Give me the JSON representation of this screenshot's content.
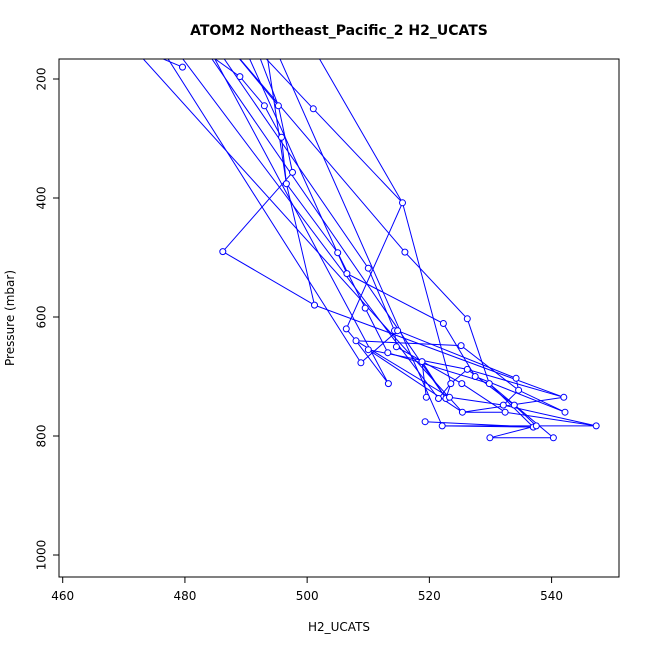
{
  "chart_data": {
    "type": "scatter",
    "title": "ATOM2 Northeast_Pacific_2 H2_UCATS",
    "xlabel": "H2_UCATS",
    "ylabel": "Pressure (mbar)",
    "xlim": [
      460,
      550
    ],
    "ylim": [
      1030,
      165
    ],
    "y_reversed": true,
    "x_ticks": [
      460,
      480,
      500,
      520,
      540
    ],
    "y_ticks": [
      200,
      400,
      600,
      800,
      1000
    ],
    "grid": false,
    "legend": "none",
    "series_color": "#0000ff",
    "points_shown": [
      [
        479.6,
        180
      ],
      [
        489.0,
        196
      ],
      [
        493.0,
        245
      ],
      [
        495.3,
        245
      ],
      [
        501.0,
        250
      ],
      [
        495.8,
        298
      ],
      [
        497.6,
        357
      ],
      [
        496.6,
        376
      ],
      [
        515.6,
        408
      ],
      [
        486.2,
        490
      ],
      [
        505.0,
        492
      ],
      [
        516.0,
        491
      ],
      [
        510.0,
        518
      ],
      [
        506.5,
        527
      ],
      [
        501.2,
        580
      ],
      [
        509.5,
        585
      ],
      [
        526.2,
        603
      ],
      [
        506.4,
        620
      ],
      [
        522.3,
        611
      ],
      [
        514.3,
        623
      ],
      [
        514.8,
        623
      ],
      [
        508.0,
        640
      ],
      [
        510.0,
        655
      ],
      [
        514.6,
        650
      ],
      [
        513.2,
        660
      ],
      [
        525.2,
        648
      ],
      [
        508.8,
        677
      ],
      [
        518.8,
        675
      ],
      [
        526.2,
        688
      ],
      [
        513.3,
        712
      ],
      [
        523.5,
        712
      ],
      [
        525.3,
        712
      ],
      [
        529.8,
        712
      ],
      [
        534.2,
        703
      ],
      [
        527.5,
        700
      ],
      [
        534.6,
        723
      ],
      [
        519.5,
        735
      ],
      [
        521.5,
        737
      ],
      [
        522.7,
        737
      ],
      [
        523.3,
        735
      ],
      [
        532.1,
        748
      ],
      [
        533.9,
        748
      ],
      [
        542.0,
        735
      ],
      [
        525.4,
        760
      ],
      [
        532.4,
        760
      ],
      [
        542.2,
        760
      ],
      [
        519.3,
        776
      ],
      [
        522.1,
        783
      ],
      [
        537.0,
        785
      ],
      [
        537.5,
        783
      ],
      [
        547.3,
        783
      ],
      [
        529.9,
        803
      ],
      [
        540.3,
        803
      ]
    ],
    "profiles": [
      [
        [
          468.0,
          130
        ],
        [
          479.6,
          180
        ]
      ],
      [
        [
          480.0,
          130
        ],
        [
          489.0,
          196
        ],
        [
          493.0,
          245
        ],
        [
          495.8,
          298
        ],
        [
          496.6,
          376
        ],
        [
          501.2,
          580
        ],
        [
          542.0,
          735
        ],
        [
          525.4,
          760
        ],
        [
          532.4,
          760
        ],
        [
          547.3,
          783
        ],
        [
          522.1,
          783
        ]
      ],
      [
        [
          486.0,
          130
        ],
        [
          495.3,
          245
        ],
        [
          497.6,
          357
        ],
        [
          486.2,
          490
        ],
        [
          501.2,
          580
        ]
      ],
      [
        [
          491.0,
          130
        ],
        [
          495.3,
          245
        ]
      ],
      [
        [
          490.0,
          130
        ],
        [
          501.0,
          250
        ],
        [
          515.6,
          408
        ],
        [
          506.4,
          620
        ],
        [
          508.0,
          640
        ],
        [
          525.2,
          648
        ],
        [
          534.6,
          723
        ],
        [
          532.1,
          748
        ]
      ],
      [
        [
          493.0,
          130
        ],
        [
          496.6,
          376
        ],
        [
          505.0,
          492
        ],
        [
          509.5,
          585
        ],
        [
          513.2,
          660
        ],
        [
          529.8,
          712
        ],
        [
          537.0,
          785
        ],
        [
          519.3,
          776
        ]
      ],
      [
        [
          486.0,
          130
        ],
        [
          516.0,
          491
        ],
        [
          526.2,
          603
        ],
        [
          529.8,
          712
        ],
        [
          540.3,
          803
        ]
      ],
      [
        [
          484.0,
          130
        ],
        [
          510.0,
          518
        ],
        [
          514.3,
          623
        ],
        [
          514.6,
          650
        ],
        [
          525.3,
          712
        ],
        [
          532.4,
          760
        ]
      ],
      [
        [
          489.0,
          130
        ],
        [
          506.5,
          527
        ],
        [
          522.3,
          611
        ],
        [
          527.5,
          700
        ],
        [
          542.2,
          760
        ]
      ],
      [
        [
          475.0,
          130
        ],
        [
          508.8,
          677
        ],
        [
          514.8,
          623
        ],
        [
          534.2,
          703
        ],
        [
          534.6,
          723
        ],
        [
          542.2,
          760
        ]
      ],
      [
        [
          482.0,
          130
        ],
        [
          522.7,
          737
        ],
        [
          518.8,
          675
        ],
        [
          519.5,
          735
        ]
      ],
      [
        [
          483.0,
          130
        ],
        [
          513.3,
          712
        ],
        [
          508.0,
          640
        ],
        [
          523.3,
          735
        ],
        [
          532.1,
          748
        ],
        [
          547.3,
          783
        ]
      ],
      [
        [
          470.0,
          130
        ],
        [
          525.4,
          760
        ],
        [
          510.0,
          655
        ],
        [
          526.2,
          688
        ],
        [
          533.9,
          748
        ],
        [
          537.5,
          783
        ],
        [
          529.9,
          803
        ],
        [
          540.3,
          803
        ]
      ],
      [
        [
          477.0,
          130
        ],
        [
          521.5,
          737
        ],
        [
          523.5,
          712
        ],
        [
          526.2,
          688
        ],
        [
          542.0,
          735
        ]
      ],
      [
        [
          494.0,
          130
        ],
        [
          522.1,
          783
        ],
        [
          537.0,
          785
        ]
      ],
      [
        [
          500.0,
          130
        ],
        [
          515.6,
          408
        ],
        [
          523.5,
          712
        ],
        [
          522.7,
          737
        ]
      ]
    ]
  }
}
